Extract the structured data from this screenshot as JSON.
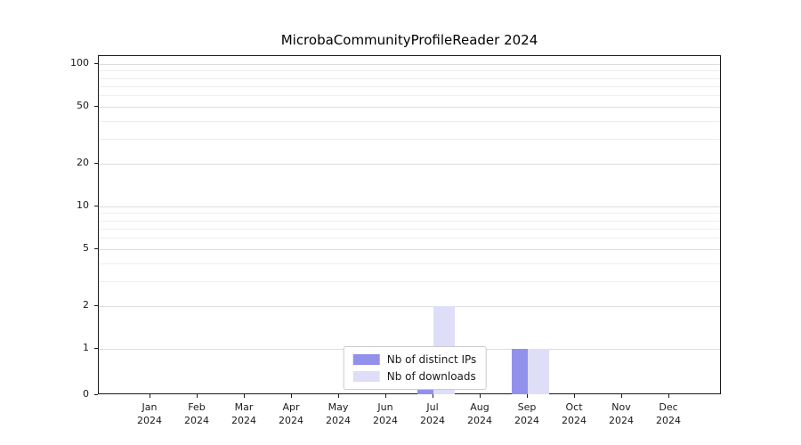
{
  "title": "MicrobaCommunityProfileReader 2024",
  "chart_data": {
    "type": "bar",
    "title": "MicrobaCommunityProfileReader 2024",
    "categories": [
      "Jan 2024",
      "Feb 2024",
      "Mar 2024",
      "Apr 2024",
      "May 2024",
      "Jun 2024",
      "Jul 2024",
      "Aug 2024",
      "Sep 2024",
      "Oct 2024",
      "Nov 2024",
      "Dec 2024"
    ],
    "series": [
      {
        "name": "Nb of distinct IPs",
        "color": "#9191ec",
        "values": [
          0,
          0,
          0,
          0,
          0,
          0,
          1,
          0,
          1,
          0,
          0,
          0
        ]
      },
      {
        "name": "Nb of downloads",
        "color": "#dedef8",
        "values": [
          0,
          0,
          0,
          0,
          0,
          0,
          2,
          0,
          1,
          0,
          0,
          0
        ]
      }
    ],
    "xlabel": "",
    "ylabel": "",
    "yticks": [
      0,
      1,
      2,
      5,
      10,
      20,
      50,
      100
    ],
    "scale": "symlog",
    "ylim": [
      0,
      112
    ],
    "grid": true,
    "legend_position": "lower center"
  },
  "colors": {
    "distinct_ips": "#9191ec",
    "downloads": "#dedef8",
    "axis": "#1a1a1a",
    "grid_minor": "#ededed",
    "grid_major": "#dddddd",
    "legend_border": "#cccccc",
    "background": "#ffffff"
  }
}
